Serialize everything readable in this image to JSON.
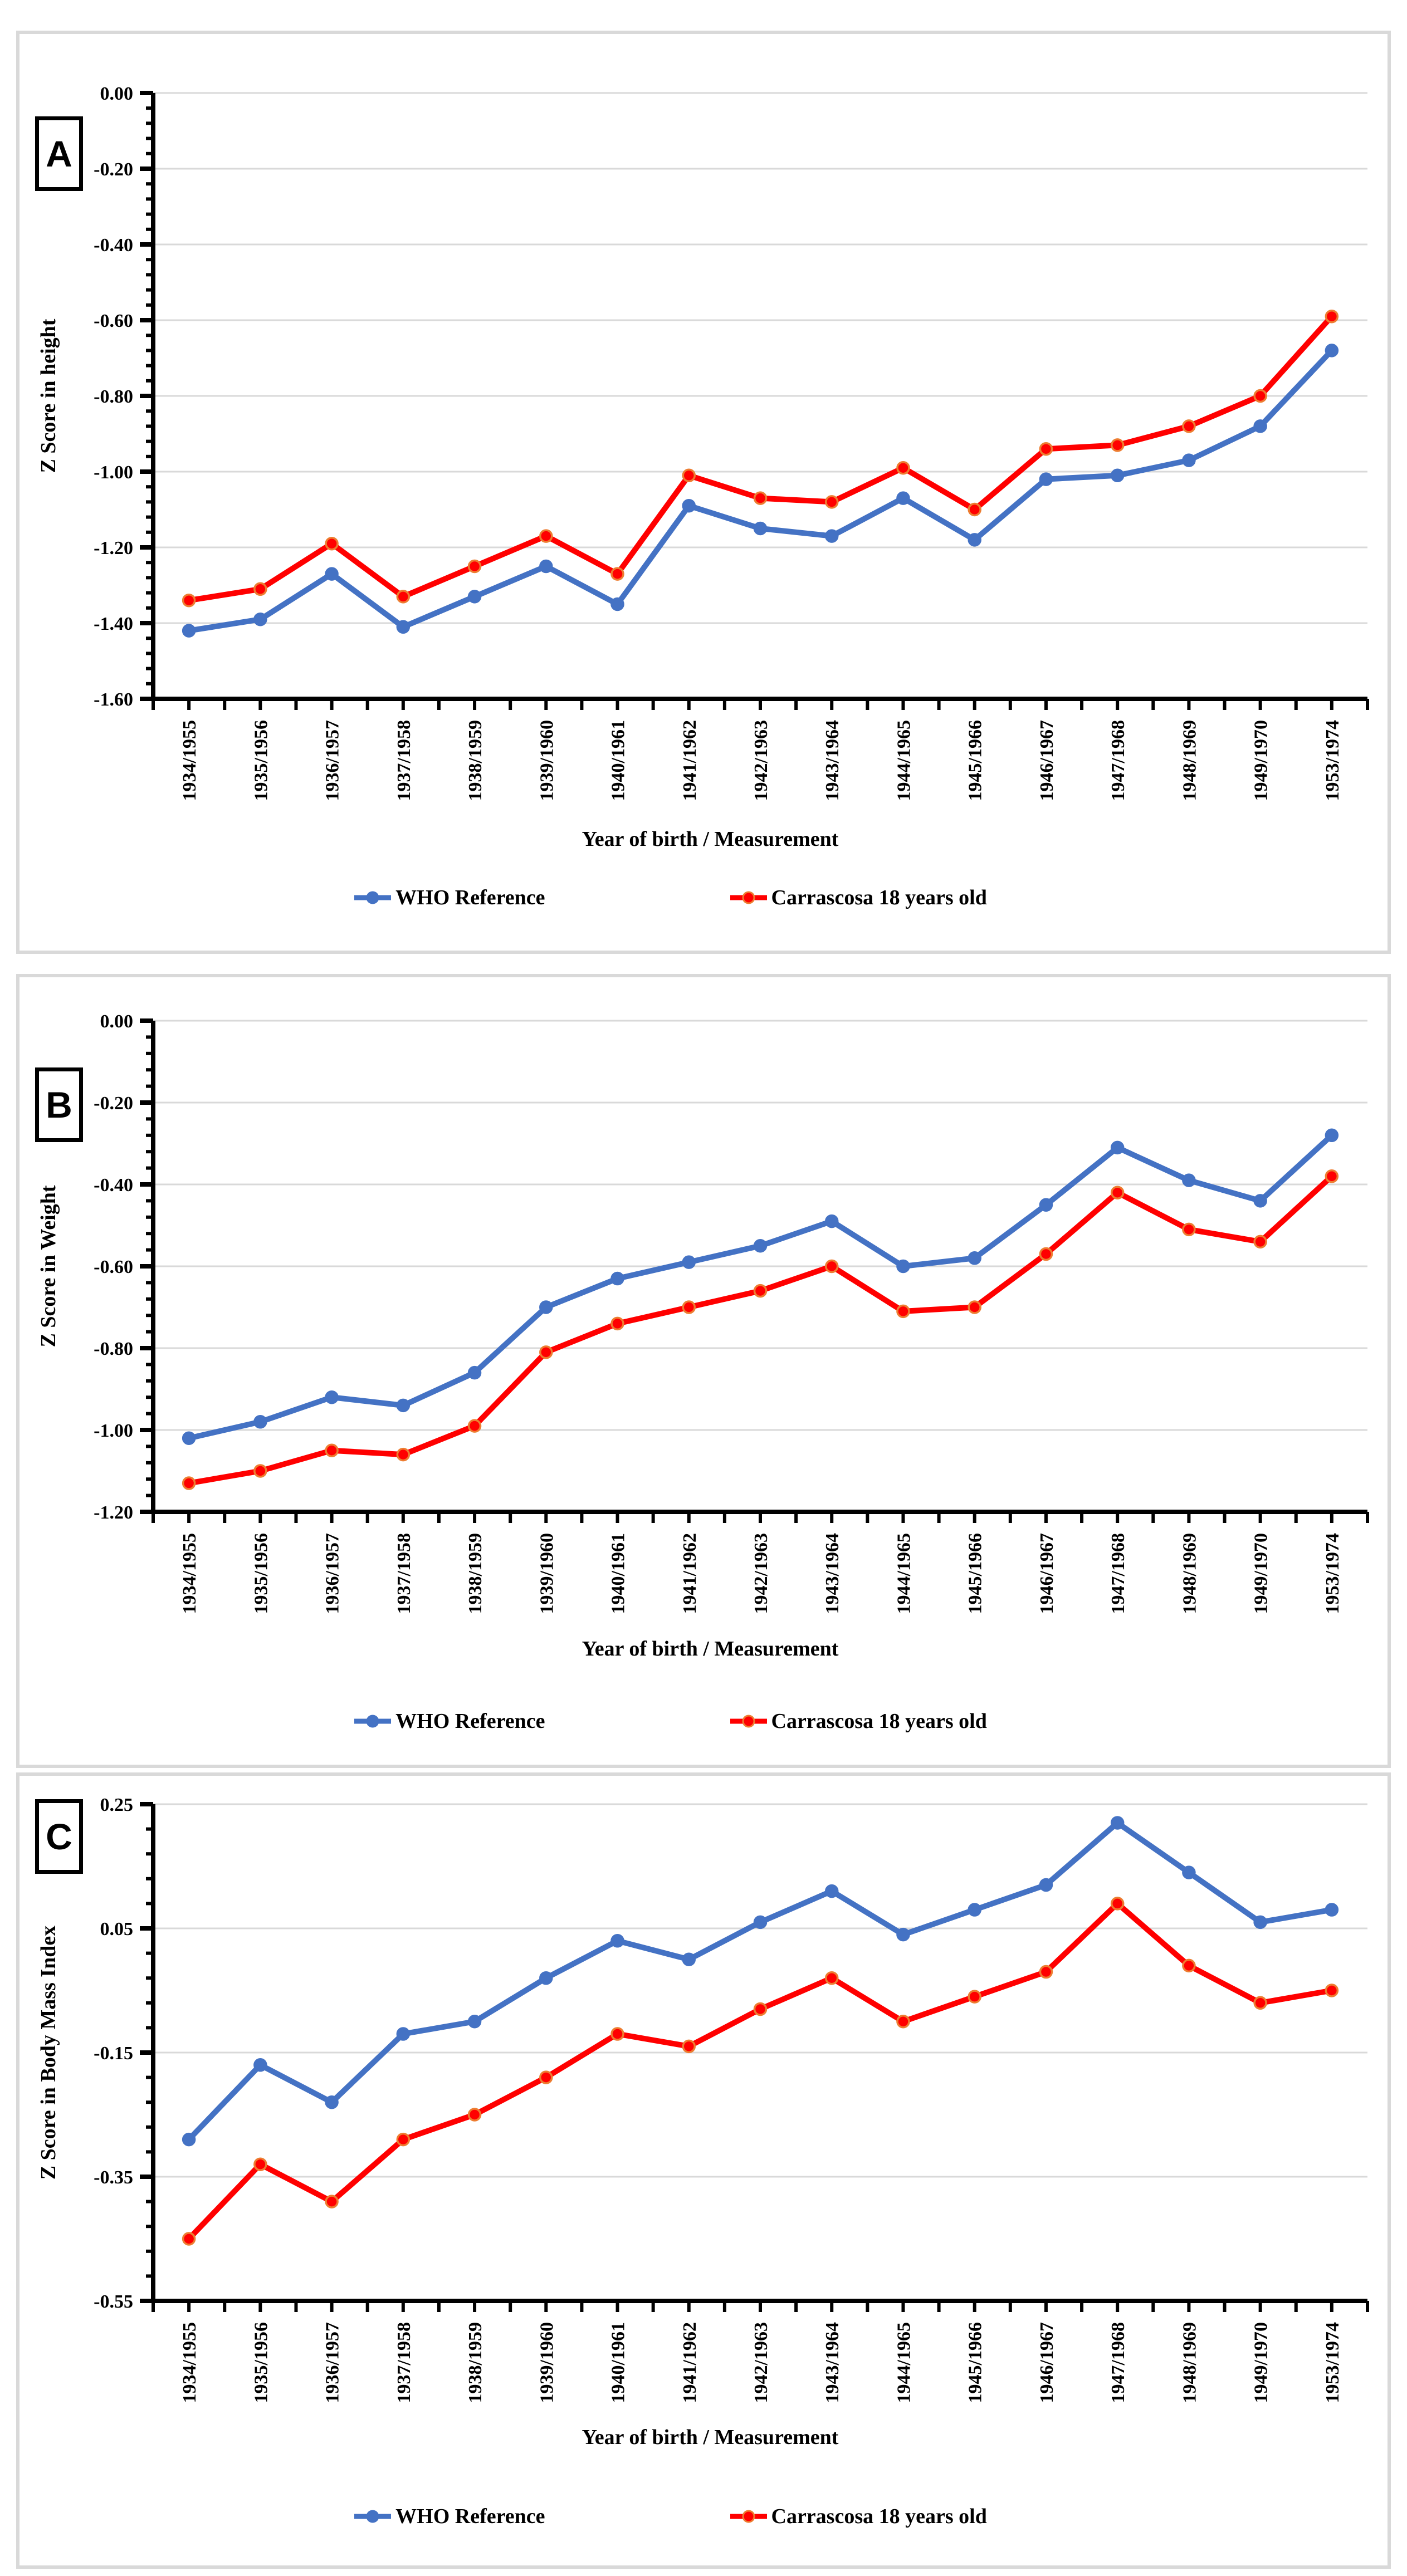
{
  "panels": [
    {
      "label": "A"
    },
    {
      "label": "B"
    },
    {
      "label": "C"
    }
  ],
  "legend": {
    "items": [
      {
        "label": "WHO Reference",
        "color": "#4472C4",
        "ring": "#4472C4"
      },
      {
        "label": "Carrascosa 18 years old",
        "color": "#FF0000",
        "ring": "#ED7D31"
      }
    ]
  },
  "colors": {
    "gridline": "#D9D9D9",
    "axis": "#000000",
    "panel_border": "#D9D9D9"
  },
  "chart_data": [
    {
      "type": "line",
      "panel": "A",
      "title": "",
      "xlabel": "Year of birth / Measurement",
      "ylabel": "Z Score in height",
      "ylim": [
        -1.6,
        0.0
      ],
      "ytick_step": 0.2,
      "grid": true,
      "legend_position": "bottom",
      "categories": [
        "1934/1955",
        "1935/1956",
        "1936/1957",
        "1937/1958",
        "1938/1959",
        "1939/1960",
        "1940/1961",
        "1941/1962",
        "1942/1963",
        "1943/1964",
        "1944/1965",
        "1945/1966",
        "1946/1967",
        "1947/1968",
        "1948/1969",
        "1949/1970",
        "1953/1974"
      ],
      "series": [
        {
          "name": "WHO Reference",
          "color": "#4472C4",
          "marker_stroke": "#4472C4",
          "values": [
            -1.42,
            -1.39,
            -1.27,
            -1.41,
            -1.33,
            -1.25,
            -1.35,
            -1.09,
            -1.15,
            -1.17,
            -1.07,
            -1.18,
            -1.02,
            -1.01,
            -0.97,
            -0.88,
            -0.68
          ]
        },
        {
          "name": "Carrascosa 18 years old",
          "color": "#FF0000",
          "marker_stroke": "#ED7D31",
          "values": [
            -1.34,
            -1.31,
            -1.19,
            -1.33,
            -1.25,
            -1.17,
            -1.27,
            -1.01,
            -1.07,
            -1.08,
            -0.99,
            -1.1,
            -0.94,
            -0.93,
            -0.88,
            -0.8,
            -0.59
          ]
        }
      ]
    },
    {
      "type": "line",
      "panel": "B",
      "title": "",
      "xlabel": "Year of birth / Measurement",
      "ylabel": "Z Score in Weight",
      "ylim": [
        -1.2,
        0.0
      ],
      "ytick_step": 0.2,
      "grid": true,
      "legend_position": "bottom",
      "categories": [
        "1934/1955",
        "1935/1956",
        "1936/1957",
        "1937/1958",
        "1938/1959",
        "1939/1960",
        "1940/1961",
        "1941/1962",
        "1942/1963",
        "1943/1964",
        "1944/1965",
        "1945/1966",
        "1946/1967",
        "1947/1968",
        "1948/1969",
        "1949/1970",
        "1953/1974"
      ],
      "series": [
        {
          "name": "WHO Reference",
          "color": "#4472C4",
          "marker_stroke": "#4472C4",
          "values": [
            -1.02,
            -0.98,
            -0.92,
            -0.94,
            -0.86,
            -0.7,
            -0.63,
            -0.59,
            -0.55,
            -0.49,
            -0.6,
            -0.58,
            -0.45,
            -0.31,
            -0.39,
            -0.44,
            -0.28
          ]
        },
        {
          "name": "Carrascosa 18 years old",
          "color": "#FF0000",
          "marker_stroke": "#ED7D31",
          "values": [
            -1.13,
            -1.1,
            -1.05,
            -1.06,
            -0.99,
            -0.81,
            -0.74,
            -0.7,
            -0.66,
            -0.6,
            -0.71,
            -0.7,
            -0.57,
            -0.42,
            -0.51,
            -0.54,
            -0.38
          ]
        }
      ]
    },
    {
      "type": "line",
      "panel": "C",
      "title": "",
      "xlabel": "Year of birth / Measurement",
      "ylabel": "Z Score in Body Mass Index",
      "ylim": [
        -0.55,
        0.25
      ],
      "ytick_step": 0.2,
      "grid": true,
      "legend_position": "bottom",
      "categories": [
        "1934/1955",
        "1935/1956",
        "1936/1957",
        "1937/1958",
        "1938/1959",
        "1939/1960",
        "1940/1961",
        "1941/1962",
        "1942/1963",
        "1943/1964",
        "1944/1965",
        "1945/1966",
        "1946/1967",
        "1947/1968",
        "1948/1969",
        "1949/1970",
        "1953/1974"
      ],
      "series": [
        {
          "name": "WHO Reference",
          "color": "#4472C4",
          "marker_stroke": "#4472C4",
          "values": [
            -0.29,
            -0.17,
            -0.23,
            -0.12,
            -0.1,
            -0.03,
            0.03,
            0.0,
            0.06,
            0.11,
            0.04,
            0.08,
            0.12,
            0.22,
            0.14,
            0.06,
            0.08
          ]
        },
        {
          "name": "Carrascosa 18 years old",
          "color": "#FF0000",
          "marker_stroke": "#ED7D31",
          "values": [
            -0.45,
            -0.33,
            -0.39,
            -0.29,
            -0.25,
            -0.19,
            -0.12,
            -0.14,
            -0.08,
            -0.03,
            -0.1,
            -0.06,
            -0.02,
            0.09,
            -0.01,
            -0.07,
            -0.05
          ]
        }
      ]
    }
  ]
}
